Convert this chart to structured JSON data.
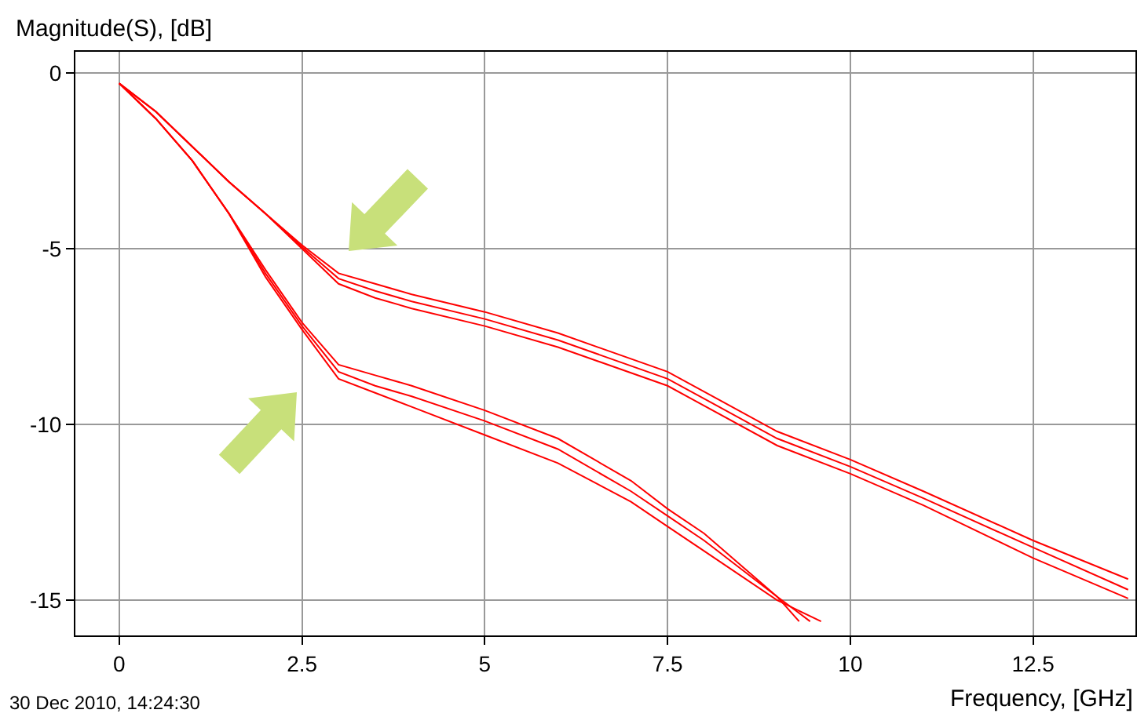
{
  "chart_data": {
    "type": "line",
    "xlabel": "Frequency, [GHz]",
    "ylabel": "Magnitude(S), [dB]",
    "xlim": [
      -0.6,
      13.9
    ],
    "ylim": [
      -16,
      0.6
    ],
    "xticks": [
      0,
      2.5,
      5,
      7.5,
      10,
      12.5
    ],
    "yticks": [
      0,
      -5,
      -10,
      -15
    ],
    "grid": true,
    "marker": "none",
    "line_style": "solid",
    "annotations": [
      "30 Dec 2010, 14:24:30"
    ],
    "series": [
      {
        "color": "#ff0000",
        "x": [
          0,
          0.5,
          1,
          1.5,
          2,
          2.5,
          3,
          3.5,
          4,
          5,
          6,
          7.5,
          9,
          10,
          11,
          12.5,
          13.8
        ],
        "values": [
          -0.3,
          -1.1,
          -2.1,
          -3.1,
          -4.0,
          -4.9,
          -5.7,
          -6.0,
          -6.3,
          -6.8,
          -7.4,
          -8.5,
          -10.2,
          -11.0,
          -11.9,
          -13.3,
          -14.4
        ]
      },
      {
        "color": "#ff0000",
        "x": [
          0,
          0.5,
          1,
          1.5,
          2,
          2.5,
          3,
          3.5,
          4,
          5,
          6,
          7.5,
          9,
          10,
          11,
          12.5,
          13.8
        ],
        "values": [
          -0.3,
          -1.1,
          -2.1,
          -3.1,
          -4.0,
          -4.95,
          -5.85,
          -6.2,
          -6.5,
          -7.0,
          -7.6,
          -8.7,
          -10.4,
          -11.2,
          -12.1,
          -13.5,
          -14.7
        ]
      },
      {
        "color": "#ff0000",
        "x": [
          0,
          0.5,
          1,
          1.5,
          2,
          2.5,
          3,
          3.5,
          4,
          5,
          6,
          7.5,
          9,
          10,
          11,
          12.5,
          13.8
        ],
        "values": [
          -0.3,
          -1.1,
          -2.1,
          -3.1,
          -4.0,
          -5.0,
          -6.0,
          -6.4,
          -6.7,
          -7.2,
          -7.8,
          -8.9,
          -10.6,
          -11.4,
          -12.3,
          -13.8,
          -14.95
        ]
      },
      {
        "color": "#ff0000",
        "x": [
          0,
          0.5,
          1,
          1.5,
          2,
          2.5,
          3,
          3.5,
          4,
          5,
          6,
          7,
          7.5,
          8,
          9,
          9.3
        ],
        "values": [
          -0.3,
          -1.3,
          -2.5,
          -4.0,
          -5.6,
          -7.1,
          -8.3,
          -8.6,
          -8.9,
          -9.6,
          -10.4,
          -11.6,
          -12.4,
          -13.1,
          -14.9,
          -15.6
        ]
      },
      {
        "color": "#ff0000",
        "x": [
          0,
          0.5,
          1,
          1.5,
          2,
          2.5,
          3,
          3.5,
          4,
          5,
          6,
          7,
          7.5,
          8,
          9,
          9.45
        ],
        "values": [
          -0.3,
          -1.3,
          -2.5,
          -4.0,
          -5.7,
          -7.2,
          -8.5,
          -8.9,
          -9.2,
          -9.9,
          -10.7,
          -11.9,
          -12.6,
          -13.3,
          -14.9,
          -15.6
        ]
      },
      {
        "color": "#ff0000",
        "x": [
          0,
          0.5,
          1,
          1.5,
          2,
          2.5,
          3,
          3.5,
          4,
          5,
          6,
          7,
          7.5,
          8,
          9,
          9.6
        ],
        "values": [
          -0.3,
          -1.3,
          -2.5,
          -4.0,
          -5.8,
          -7.3,
          -8.7,
          -9.1,
          -9.5,
          -10.3,
          -11.1,
          -12.2,
          -12.9,
          -13.6,
          -15.0,
          -15.6
        ]
      }
    ]
  }
}
